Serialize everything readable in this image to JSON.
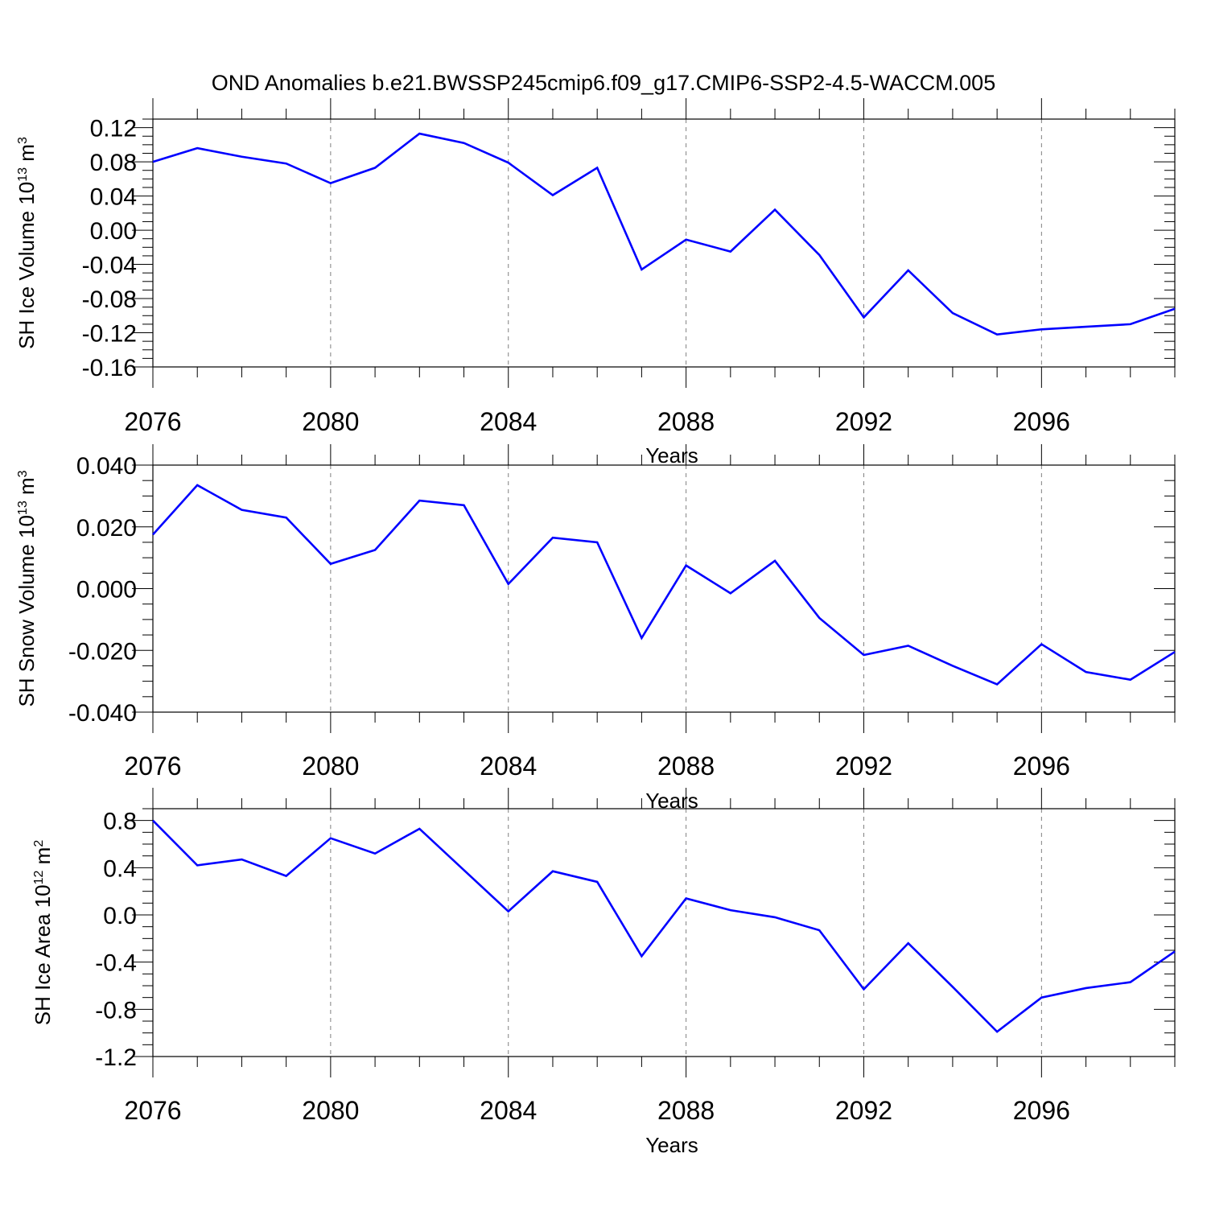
{
  "title": "OND Anomalies b.e21.BWSSP245cmip6.f09_g17.CMIP6-SSP2-4.5-WACCM.005",
  "colors": {
    "line": "#0000ff",
    "axis": "#000000",
    "grid": "#808080"
  },
  "chart_data": [
    {
      "type": "line",
      "ylabel": {
        "text": "SH Ice Volume 10",
        "exp": "13",
        "unit": " m",
        "unit_exp": "3"
      },
      "xlabel": "Years",
      "xlim": [
        2076,
        2099
      ],
      "ylim": [
        -0.16,
        0.13
      ],
      "yticks": [
        0.12,
        0.08,
        0.04,
        0.0,
        -0.04,
        -0.08,
        -0.12,
        -0.16
      ],
      "ytick_labels": [
        "0.12",
        "0.08",
        "0.04",
        "0.00",
        "-0.04",
        "-0.08",
        "-0.12",
        "-0.16"
      ],
      "xticks": [
        2076,
        2080,
        2084,
        2088,
        2092,
        2096
      ],
      "xtick_labels": [
        "2076",
        "2080",
        "2084",
        "2088",
        "2092",
        "2096"
      ],
      "grid": "x-dashed",
      "x": [
        2076,
        2077,
        2078,
        2079,
        2080,
        2081,
        2082,
        2083,
        2084,
        2085,
        2086,
        2087,
        2088,
        2089,
        2090,
        2091,
        2092,
        2093,
        2094,
        2095,
        2096,
        2097,
        2098,
        2099
      ],
      "series": [
        {
          "values": [
            0.08,
            0.096,
            0.086,
            0.078,
            0.055,
            0.073,
            0.113,
            0.102,
            0.079,
            0.041,
            0.073,
            -0.046,
            -0.011,
            -0.025,
            0.024,
            -0.029,
            -0.102,
            -0.047,
            -0.097,
            -0.122,
            -0.116,
            -0.113,
            -0.11,
            -0.092
          ]
        }
      ]
    },
    {
      "type": "line",
      "ylabel": {
        "text": "SH Snow Volume 10",
        "exp": "13",
        "unit": " m",
        "unit_exp": "3"
      },
      "xlabel": "Years",
      "xlim": [
        2076,
        2099
      ],
      "ylim": [
        -0.04,
        0.04
      ],
      "yticks": [
        0.04,
        0.02,
        0.0,
        -0.02,
        -0.04
      ],
      "ytick_labels": [
        "0.040",
        "0.020",
        "0.000",
        "-0.020",
        "-0.040"
      ],
      "xticks": [
        2076,
        2080,
        2084,
        2088,
        2092,
        2096
      ],
      "xtick_labels": [
        "2076",
        "2080",
        "2084",
        "2088",
        "2092",
        "2096"
      ],
      "grid": "x-dashed",
      "x": [
        2076,
        2077,
        2078,
        2079,
        2080,
        2081,
        2082,
        2083,
        2084,
        2085,
        2086,
        2087,
        2088,
        2089,
        2090,
        2091,
        2092,
        2093,
        2094,
        2095,
        2096,
        2097,
        2098,
        2099
      ],
      "series": [
        {
          "values": [
            0.0175,
            0.0335,
            0.0255,
            0.023,
            0.008,
            0.0125,
            0.0285,
            0.027,
            0.0015,
            0.0165,
            0.015,
            -0.016,
            0.0075,
            -0.0015,
            0.009,
            -0.0095,
            -0.0215,
            -0.0185,
            -0.025,
            -0.031,
            -0.018,
            -0.027,
            -0.0295,
            -0.0205
          ]
        }
      ]
    },
    {
      "type": "line",
      "ylabel": {
        "text": "SH Ice Area 10",
        "exp": "12",
        "unit": " m",
        "unit_exp": "2"
      },
      "xlabel": "Years",
      "xlim": [
        2076,
        2099
      ],
      "ylim": [
        -1.2,
        0.9
      ],
      "yticks": [
        0.8,
        0.4,
        0.0,
        -0.4,
        -0.8,
        -1.2
      ],
      "ytick_labels": [
        "0.8",
        "0.4",
        "0.0",
        "-0.4",
        "-0.8",
        "-1.2"
      ],
      "xticks": [
        2076,
        2080,
        2084,
        2088,
        2092,
        2096
      ],
      "xtick_labels": [
        "2076",
        "2080",
        "2084",
        "2088",
        "2092",
        "2096"
      ],
      "grid": "x-dashed",
      "x": [
        2076,
        2077,
        2078,
        2079,
        2080,
        2081,
        2082,
        2083,
        2084,
        2085,
        2086,
        2087,
        2088,
        2089,
        2090,
        2091,
        2092,
        2093,
        2094,
        2095,
        2096,
        2097,
        2098,
        2099
      ],
      "series": [
        {
          "values": [
            0.8,
            0.42,
            0.47,
            0.33,
            0.65,
            0.52,
            0.73,
            0.38,
            0.03,
            0.37,
            0.28,
            -0.35,
            0.14,
            0.04,
            -0.02,
            -0.13,
            -0.63,
            -0.24,
            -0.61,
            -0.99,
            -0.7,
            -0.62,
            -0.57,
            -0.31
          ]
        }
      ]
    }
  ]
}
